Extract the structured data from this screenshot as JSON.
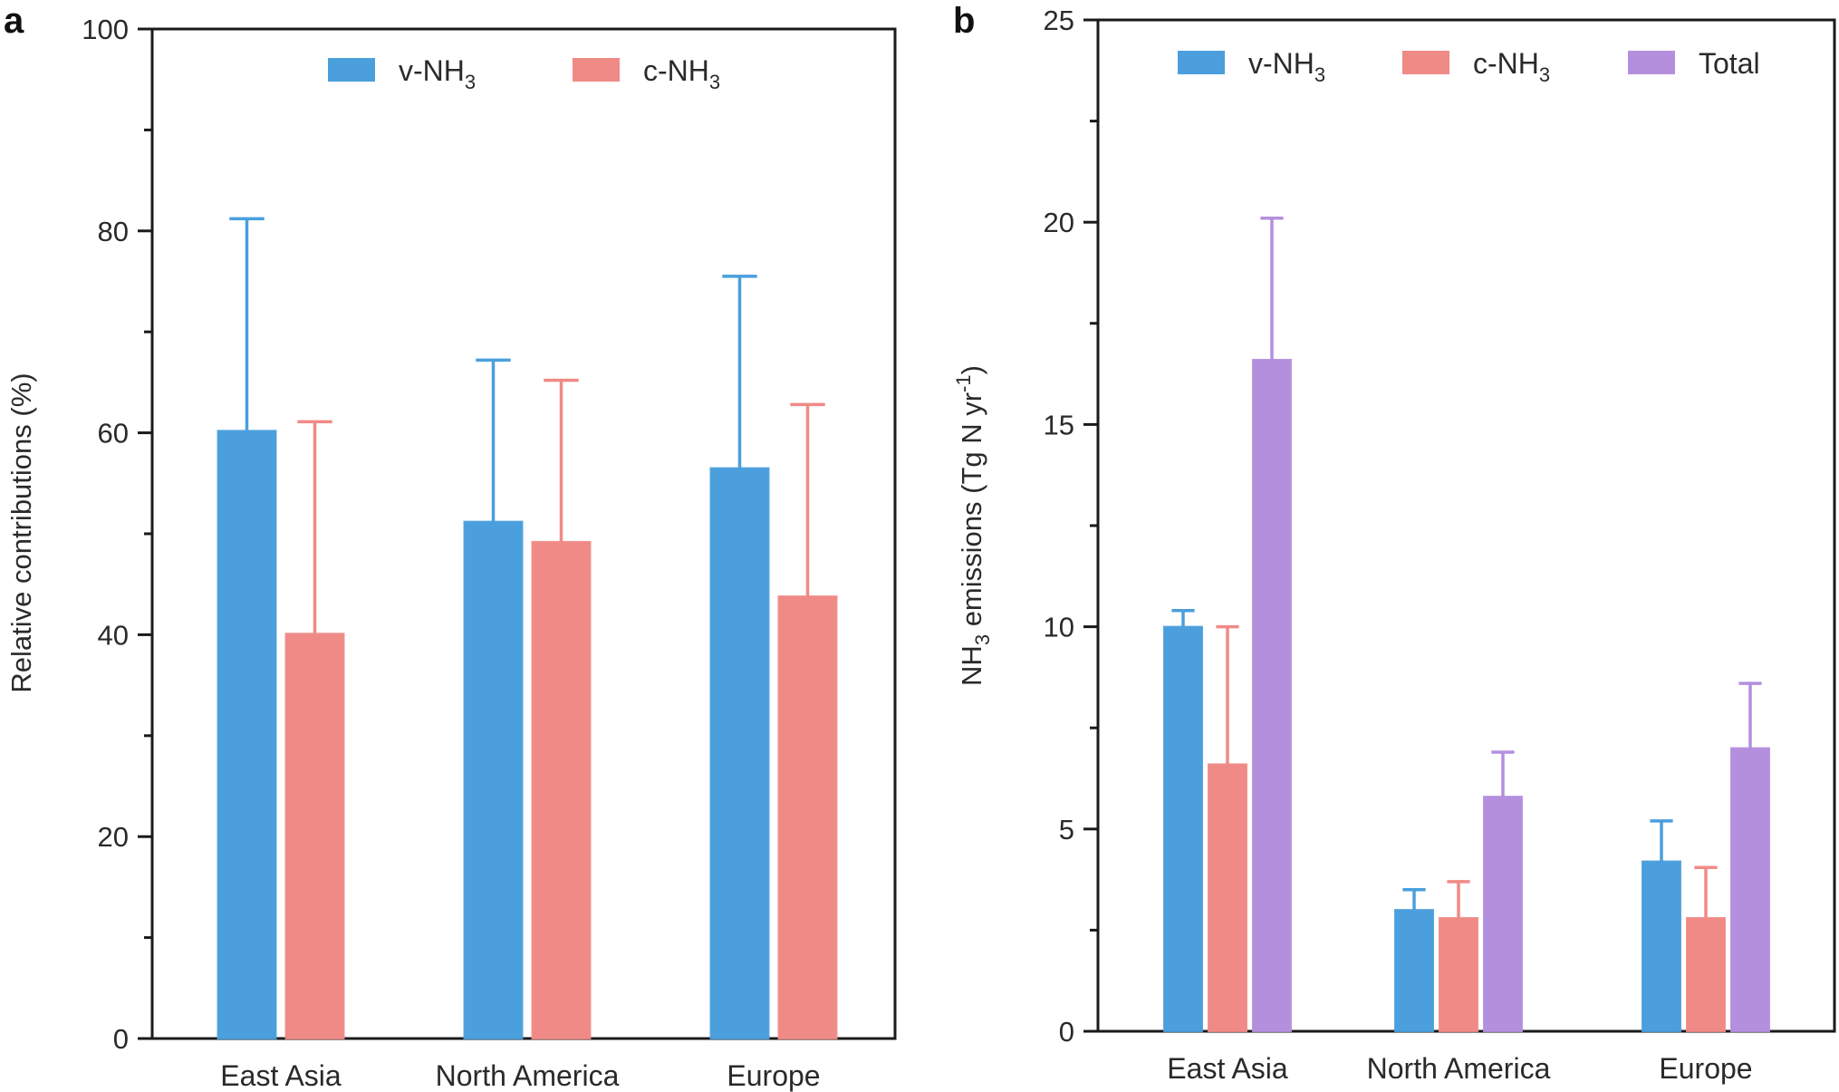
{
  "chart_data": [
    {
      "panel": "a",
      "type": "bar",
      "categories": [
        "East Asia",
        "North America",
        "Europe"
      ],
      "series": [
        {
          "name": "v-NH",
          "subscript": "3",
          "color": "#4a9fdc",
          "values": [
            60.2,
            51.2,
            56.5
          ],
          "errors": [
            21.0,
            16.0,
            19.0
          ]
        },
        {
          "name": "c-NH",
          "subscript": "3",
          "color": "#f08a86",
          "values": [
            40.1,
            49.2,
            43.8
          ],
          "errors": [
            21.0,
            16.0,
            19.0
          ]
        }
      ],
      "ylabel": "Relative contributions (%)",
      "ylim": [
        0,
        100
      ],
      "yticks": [
        0,
        20,
        40,
        60,
        80,
        100
      ],
      "legend": "top-center"
    },
    {
      "panel": "b",
      "type": "bar",
      "categories": [
        "East Asia",
        "North America",
        "Europe"
      ],
      "series": [
        {
          "name": "v-NH",
          "subscript": "3",
          "color": "#4a9fdc",
          "values": [
            10.0,
            3.0,
            4.2
          ],
          "errors": [
            0.4,
            0.5,
            1.0
          ]
        },
        {
          "name": "c-NH",
          "subscript": "3",
          "color": "#f08a86",
          "values": [
            6.6,
            2.8,
            2.8
          ],
          "errors": [
            3.4,
            0.9,
            1.25
          ]
        },
        {
          "name": "Total",
          "subscript": "",
          "color": "#b48fde",
          "values": [
            16.6,
            5.8,
            7.0
          ],
          "errors": [
            3.5,
            1.1,
            1.6
          ]
        }
      ],
      "ylabel_parts": {
        "pre": "NH",
        "sub": "3",
        "mid": " emissions (Tg N yr",
        "sup": "-1",
        "post": ")"
      },
      "ylim": [
        0,
        25
      ],
      "yticks": [
        0,
        5,
        10,
        15,
        20,
        25
      ],
      "legend": "top-center"
    }
  ]
}
